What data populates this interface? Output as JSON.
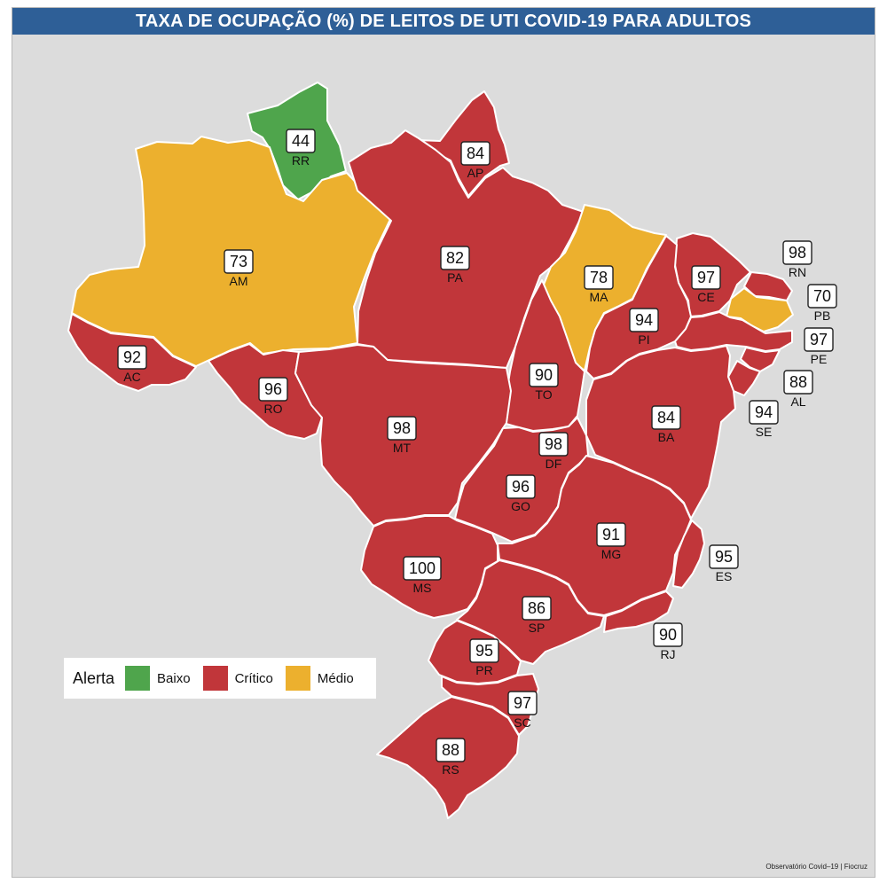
{
  "title": "TAXA DE OCUPAÇÃO (%) DE LEITOS DE UTI COVID-19 PARA ADULTOS",
  "colors": {
    "baixo": "#4fa54c",
    "critico": "#c1363a",
    "medio": "#ecb02e",
    "background": "#dcdcdc",
    "title_bar": "#2e5f97"
  },
  "legend": {
    "title": "Alerta",
    "items": [
      {
        "label": "Baixo",
        "color": "#4fa54c"
      },
      {
        "label": "Crítico",
        "color": "#c1363a"
      },
      {
        "label": "Médio",
        "color": "#ecb02e"
      }
    ]
  },
  "states": [
    {
      "uf": "RR",
      "value": "44",
      "level": "baixo"
    },
    {
      "uf": "AP",
      "value": "84",
      "level": "critico"
    },
    {
      "uf": "AM",
      "value": "73",
      "level": "medio"
    },
    {
      "uf": "PA",
      "value": "82",
      "level": "critico"
    },
    {
      "uf": "MA",
      "value": "78",
      "level": "medio"
    },
    {
      "uf": "CE",
      "value": "97",
      "level": "critico"
    },
    {
      "uf": "RN",
      "value": "98",
      "level": "critico"
    },
    {
      "uf": "PB",
      "value": "70",
      "level": "medio"
    },
    {
      "uf": "PE",
      "value": "97",
      "level": "critico"
    },
    {
      "uf": "AL",
      "value": "88",
      "level": "critico"
    },
    {
      "uf": "SE",
      "value": "94",
      "level": "critico"
    },
    {
      "uf": "PI",
      "value": "94",
      "level": "critico"
    },
    {
      "uf": "AC",
      "value": "92",
      "level": "critico"
    },
    {
      "uf": "RO",
      "value": "96",
      "level": "critico"
    },
    {
      "uf": "TO",
      "value": "90",
      "level": "critico"
    },
    {
      "uf": "BA",
      "value": "84",
      "level": "critico"
    },
    {
      "uf": "MT",
      "value": "98",
      "level": "critico"
    },
    {
      "uf": "DF",
      "value": "98",
      "level": "critico"
    },
    {
      "uf": "GO",
      "value": "96",
      "level": "critico"
    },
    {
      "uf": "MG",
      "value": "91",
      "level": "critico"
    },
    {
      "uf": "ES",
      "value": "95",
      "level": "critico"
    },
    {
      "uf": "MS",
      "value": "100",
      "level": "critico"
    },
    {
      "uf": "SP",
      "value": "86",
      "level": "critico"
    },
    {
      "uf": "RJ",
      "value": "90",
      "level": "critico"
    },
    {
      "uf": "PR",
      "value": "95",
      "level": "critico"
    },
    {
      "uf": "SC",
      "value": "97",
      "level": "critico"
    },
    {
      "uf": "RS",
      "value": "88",
      "level": "critico"
    }
  ],
  "credit": "Observatório Covid–19 | Fiocruz"
}
